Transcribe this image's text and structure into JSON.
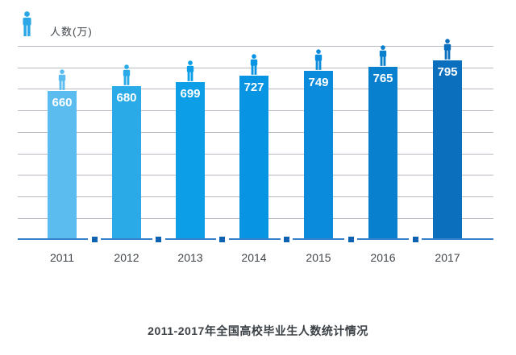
{
  "legend": {
    "label": "人数(万)"
  },
  "title": "2011-2017年全国高校毕业生人数统计情况",
  "chart_data": {
    "type": "bar",
    "categories": [
      "2011",
      "2012",
      "2013",
      "2014",
      "2015",
      "2016",
      "2017"
    ],
    "values": [
      660,
      680,
      699,
      727,
      749,
      765,
      795
    ],
    "title": "2011-2017年全国高校毕业生人数统计情况",
    "xlabel": "",
    "ylabel": "人数(万)",
    "ylim": [
      0,
      900
    ],
    "grid": true,
    "legend_position": "top-left",
    "data_labels": "white, bold, inside top of each bar",
    "bar_colors": [
      "#5bbcef",
      "#2baae8",
      "#0c9ee7",
      "#0795e3",
      "#0a8bdb",
      "#0980cd",
      "#0b6fbe"
    ],
    "gridline_color": "#b6bcc2",
    "baseline_color": "#3580c9",
    "baseline_square_color": "#0d63b2",
    "legend_icon_color": "#2ba7e8"
  }
}
